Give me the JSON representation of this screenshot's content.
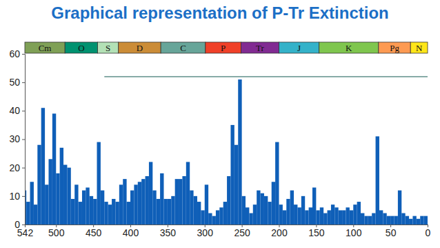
{
  "chart_data": {
    "type": "histogram",
    "title": "Graphical representation of P-Tr Extinction",
    "color": "#0f5fb8",
    "grid": false,
    "bins": [
      542,
      540,
      535,
      530,
      525,
      520,
      515,
      510,
      505,
      500,
      495,
      490,
      485,
      480,
      475,
      470,
      465,
      460,
      455,
      450,
      445,
      440,
      435,
      430,
      425,
      420,
      415,
      410,
      405,
      400,
      395,
      390,
      385,
      380,
      375,
      370,
      365,
      360,
      355,
      350,
      345,
      340,
      335,
      330,
      325,
      320,
      315,
      310,
      305,
      300,
      295,
      290,
      285,
      280,
      275,
      270,
      265,
      260,
      255,
      250,
      245,
      240,
      235,
      230,
      225,
      220,
      215,
      210,
      205,
      200,
      195,
      190,
      185,
      180,
      175,
      170,
      165,
      160,
      155,
      150,
      145,
      140,
      135,
      130,
      125,
      120,
      115,
      110,
      105,
      100,
      95,
      90,
      85,
      80,
      75,
      70,
      65,
      60,
      55,
      50,
      45,
      40,
      35,
      30,
      25,
      20,
      15,
      10,
      5,
      0
    ],
    "values": [
      12,
      8,
      15,
      7,
      28,
      41,
      14,
      23,
      39,
      18,
      27,
      21,
      20,
      9,
      14,
      8,
      12,
      13,
      10,
      9,
      29,
      12,
      8,
      7,
      9,
      8,
      14,
      16,
      8,
      12,
      14,
      15,
      16,
      17,
      22,
      12,
      9,
      18,
      9,
      9,
      10,
      16,
      16,
      17,
      22,
      12,
      10,
      8,
      5,
      14,
      4,
      3,
      5,
      6,
      8,
      17,
      35,
      28,
      51,
      10,
      6,
      4,
      7,
      12,
      11,
      10,
      8,
      15,
      29,
      7,
      5,
      9,
      12,
      7,
      6,
      10,
      5,
      6,
      13,
      5,
      6,
      4,
      5,
      7,
      6,
      5,
      5,
      6,
      5,
      7,
      8,
      4,
      3,
      3,
      4,
      31,
      5,
      4,
      3,
      3,
      3,
      12,
      4,
      3,
      2,
      3,
      2,
      3,
      3
    ],
    "xlim": [
      542,
      0
    ],
    "xticks": [
      542,
      500,
      450,
      400,
      350,
      300,
      250,
      200,
      150,
      100,
      50,
      0
    ],
    "ylim": [
      0,
      60
    ],
    "yticks": [
      0,
      10,
      20,
      30,
      40,
      50,
      60
    ],
    "periods": [
      {
        "label": "Cm",
        "start": 542,
        "end": 488,
        "color": "#7fa056"
      },
      {
        "label": "O",
        "start": 488,
        "end": 444,
        "color": "#009270"
      },
      {
        "label": "S",
        "start": 444,
        "end": 416,
        "color": "#b3e1b6"
      },
      {
        "label": "D",
        "start": 416,
        "end": 359,
        "color": "#cb8c37"
      },
      {
        "label": "C",
        "start": 359,
        "end": 299,
        "color": "#67a599"
      },
      {
        "label": "P",
        "start": 299,
        "end": 251,
        "color": "#f04028"
      },
      {
        "label": "Tr",
        "start": 251,
        "end": 200,
        "color": "#812b92"
      },
      {
        "label": "J",
        "start": 200,
        "end": 146,
        "color": "#34b2c9"
      },
      {
        "label": "K",
        "start": 146,
        "end": 66,
        "color": "#7fc64e"
      },
      {
        "label": "Pg",
        "start": 66,
        "end": 23,
        "color": "#fd9a52"
      },
      {
        "label": "N",
        "start": 23,
        "end": 0,
        "color": "#ffe619"
      }
    ],
    "reference_line": {
      "value": 52,
      "from": 435,
      "to": 0,
      "color": "#5f8f8a"
    }
  }
}
